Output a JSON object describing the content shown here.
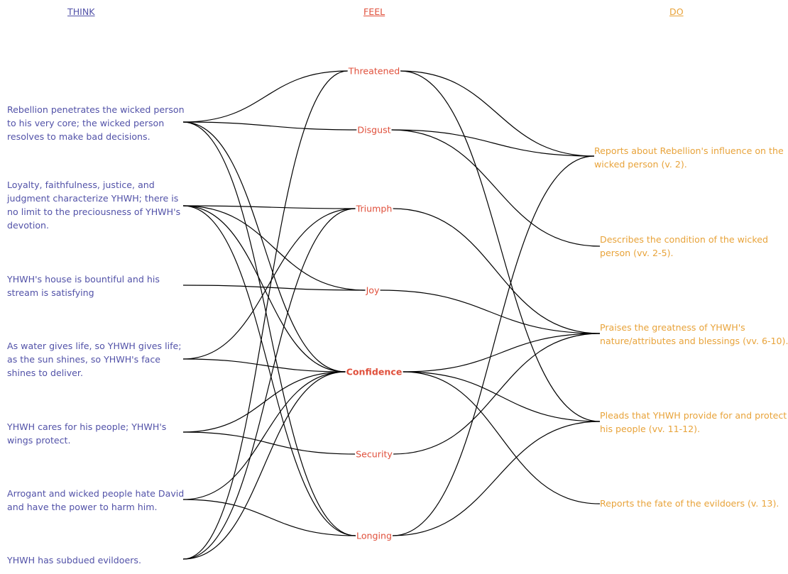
{
  "headers": {
    "think": "THINK",
    "feel": "FEEL",
    "do": "DO"
  },
  "colors": {
    "think": "#5252a8",
    "feel": "#e0503c",
    "do": "#e8a33a",
    "link": "#000000"
  },
  "think": [
    "Rebellion penetrates the wicked person to his very core; the wicked person resolves to make bad decisions.",
    "Loyalty, faithfulness, justice, and judgment characterize YHWH; there is no limit to the preciousness of YHWH's devotion.",
    "YHWH's house is bountiful and his stream is satisfying",
    "As water gives life, so YHWH gives life; as the sun shines, so YHWH's face shines to deliver.",
    "YHWH cares for his people; YHWH's wings protect.",
    "Arrogant and wicked people hate David and have the power to harm him.",
    "YHWH has subdued evildoers."
  ],
  "feel": [
    {
      "label": "Threatened",
      "emphasis": false
    },
    {
      "label": "Disgust",
      "emphasis": false
    },
    {
      "label": "Triumph",
      "emphasis": false
    },
    {
      "label": "Joy",
      "emphasis": false
    },
    {
      "label": "Confidence",
      "emphasis": true
    },
    {
      "label": "Security",
      "emphasis": false
    },
    {
      "label": "Longing",
      "emphasis": false
    }
  ],
  "do": [
    "Reports about Rebellion's influence on the wicked person (v. 2).",
    "Describes the condition of the wicked person (vv. 2-5).",
    "Praises the greatness of YHWH's nature/attributes and blessings (vv. 6-10).",
    "Pleads that YHWH provide for and protect his people (vv. 11-12).",
    "Reports the fate of the evildoers (v. 13)."
  ],
  "think_feel_links": [
    [
      0,
      0
    ],
    [
      0,
      1
    ],
    [
      0,
      4
    ],
    [
      0,
      6
    ],
    [
      1,
      2
    ],
    [
      1,
      3
    ],
    [
      1,
      4
    ],
    [
      1,
      6
    ],
    [
      2,
      3
    ],
    [
      3,
      2
    ],
    [
      3,
      4
    ],
    [
      4,
      4
    ],
    [
      4,
      5
    ],
    [
      5,
      4
    ],
    [
      5,
      6
    ],
    [
      6,
      0
    ],
    [
      6,
      2
    ],
    [
      6,
      4
    ]
  ],
  "feel_do_links": [
    [
      0,
      0
    ],
    [
      0,
      3
    ],
    [
      1,
      0
    ],
    [
      1,
      1
    ],
    [
      2,
      2
    ],
    [
      3,
      2
    ],
    [
      4,
      2
    ],
    [
      4,
      3
    ],
    [
      4,
      4
    ],
    [
      5,
      2
    ],
    [
      6,
      0
    ],
    [
      6,
      3
    ]
  ]
}
